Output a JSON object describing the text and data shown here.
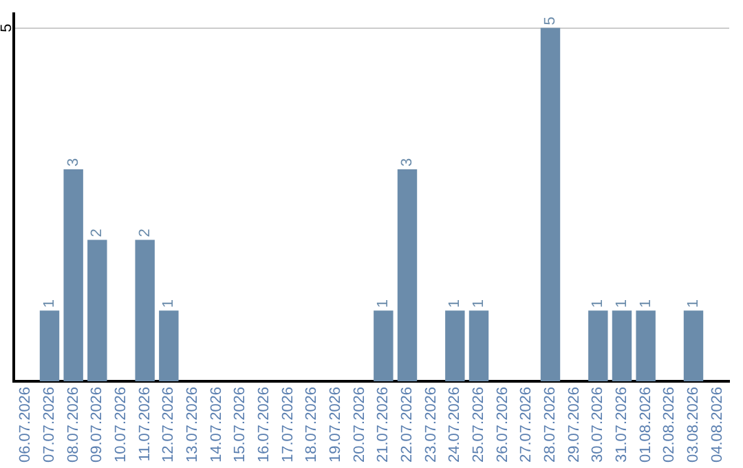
{
  "chart_data": {
    "type": "bar",
    "categories": [
      "06.07.2026",
      "07.07.2026",
      "08.07.2026",
      "09.07.2026",
      "10.07.2026",
      "11.07.2026",
      "12.07.2026",
      "13.07.2026",
      "14.07.2026",
      "15.07.2026",
      "16.07.2026",
      "17.07.2026",
      "18.07.2026",
      "19.07.2026",
      "20.07.2026",
      "21.07.2026",
      "22.07.2026",
      "23.07.2026",
      "24.07.2026",
      "25.07.2026",
      "26.07.2026",
      "27.07.2026",
      "28.07.2026",
      "29.07.2026",
      "30.07.2026",
      "31.07.2026",
      "01.08.2026",
      "02.08.2026",
      "03.08.2026",
      "04.08.2026"
    ],
    "values": [
      0,
      1,
      3,
      2,
      0,
      2,
      1,
      0,
      0,
      0,
      0,
      0,
      0,
      0,
      0,
      1,
      3,
      0,
      1,
      1,
      0,
      0,
      5,
      0,
      1,
      1,
      1,
      0,
      1,
      0
    ],
    "value_labels": [
      null,
      "1",
      "3",
      "2",
      null,
      "2",
      "1",
      null,
      null,
      null,
      null,
      null,
      null,
      null,
      null,
      "1",
      "3",
      null,
      "1",
      "1",
      null,
      null,
      "5",
      null,
      "1",
      "1",
      "1",
      null,
      "1",
      null
    ],
    "color": "#6b8cab",
    "ylim": [
      0,
      5.2
    ],
    "yticks": [
      5
    ],
    "grid": "y",
    "legend": false
  }
}
